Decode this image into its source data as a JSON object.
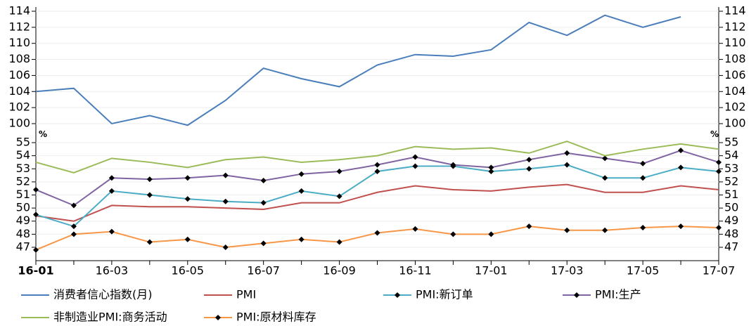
{
  "chart_data": [
    {
      "type": "line",
      "categories": [
        "16-01",
        null,
        "16-03",
        null,
        "16-05",
        null,
        "16-07",
        null,
        "16-09",
        null,
        "16-11",
        null,
        "17-01",
        null,
        "17-03",
        null,
        "17-05",
        null,
        "17-07"
      ],
      "ylim": [
        99,
        114
      ],
      "yticks": [
        100,
        102,
        104,
        106,
        108,
        110,
        112,
        114
      ],
      "grid": true,
      "series": [
        {
          "name": "消费者信心指数(月)",
          "color": "#4a7ebb",
          "marker": "none",
          "values": [
            104.0,
            104.4,
            100.0,
            101.0,
            99.8,
            102.9,
            106.9,
            105.6,
            104.6,
            107.3,
            108.6,
            108.4,
            109.2,
            112.6,
            111.0,
            113.5,
            112.0,
            113.3,
            null
          ]
        }
      ]
    },
    {
      "type": "line",
      "unit": "%",
      "categories": [
        "16-01",
        null,
        "16-03",
        null,
        "16-05",
        null,
        "16-07",
        null,
        "16-09",
        null,
        "16-11",
        null,
        "17-01",
        null,
        "17-03",
        null,
        "17-05",
        null,
        "17-07"
      ],
      "ylim": [
        46,
        55.5
      ],
      "yticks": [
        47,
        48,
        49,
        50,
        51,
        52,
        53,
        54,
        55
      ],
      "grid": true,
      "series": [
        {
          "name": "PMI",
          "color": "#c0504d",
          "marker": "none",
          "values": [
            49.4,
            49.0,
            50.2,
            50.1,
            50.1,
            50.0,
            49.9,
            50.4,
            50.4,
            51.2,
            51.7,
            51.4,
            51.3,
            51.6,
            51.8,
            51.2,
            51.2,
            51.7,
            51.4
          ]
        },
        {
          "name": "PMI:新订单",
          "color": "#4bacc6",
          "marker": "diamond",
          "values": [
            49.5,
            48.6,
            51.3,
            51.0,
            50.7,
            50.5,
            50.4,
            51.3,
            50.9,
            52.8,
            53.2,
            53.2,
            52.8,
            53.0,
            53.3,
            52.3,
            52.3,
            53.1,
            52.8
          ]
        },
        {
          "name": "PMI:生产",
          "color": "#8064a2",
          "marker": "diamond",
          "values": [
            51.4,
            50.2,
            52.3,
            52.2,
            52.3,
            52.5,
            52.1,
            52.6,
            52.8,
            53.3,
            53.9,
            53.3,
            53.1,
            53.7,
            54.2,
            53.8,
            53.4,
            54.4,
            53.5
          ]
        },
        {
          "name": "非制造业PMI:商务活动",
          "color": "#9bbb59",
          "marker": "none",
          "values": [
            53.5,
            52.7,
            53.8,
            53.5,
            53.1,
            53.7,
            53.9,
            53.5,
            53.7,
            54.0,
            54.7,
            54.5,
            54.6,
            54.2,
            55.1,
            54.0,
            54.5,
            54.9,
            54.5
          ]
        },
        {
          "name": "PMI:原材料库存",
          "color": "#f79646",
          "marker": "diamond",
          "values": [
            46.8,
            48.0,
            48.2,
            47.4,
            47.6,
            47.0,
            47.3,
            47.6,
            47.4,
            48.1,
            48.4,
            48.0,
            48.0,
            48.6,
            48.3,
            48.3,
            48.5,
            48.6,
            48.5
          ]
        }
      ]
    }
  ]
}
